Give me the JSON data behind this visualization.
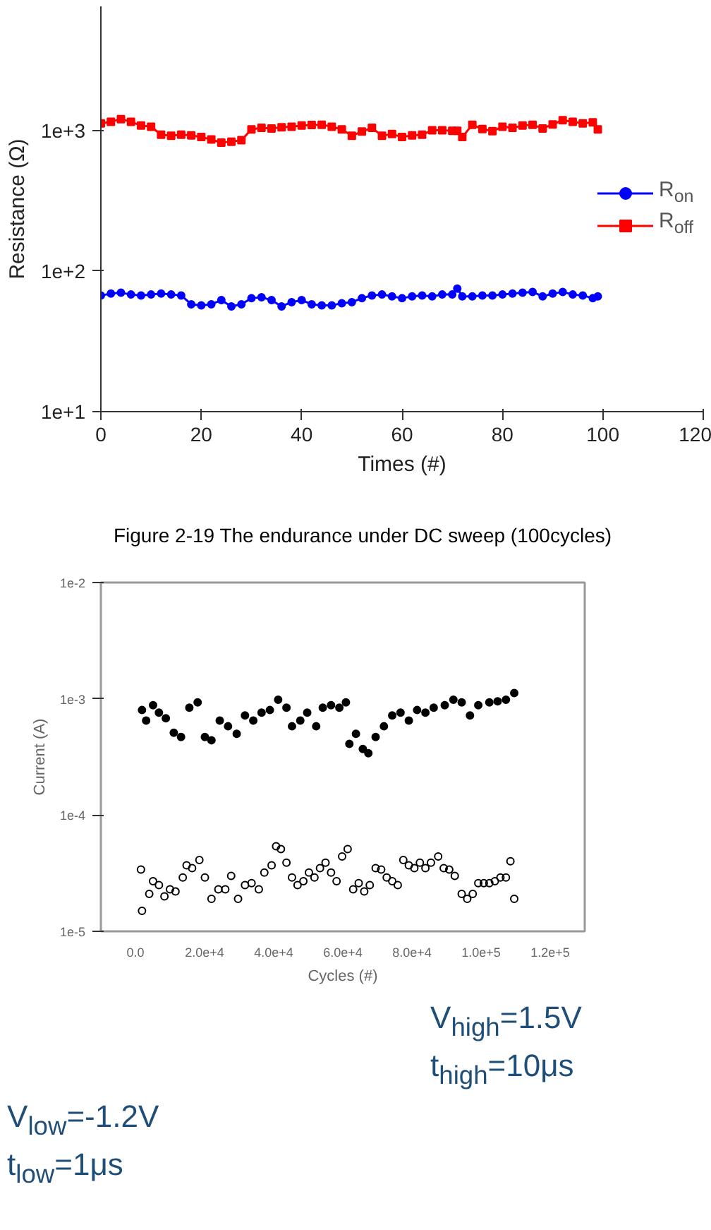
{
  "chart_data": [
    {
      "type": "line",
      "xlabel": "Times (#)",
      "ylabel": "Resistance (Ω)",
      "log": "y",
      "line_style": "solid",
      "legend": "right",
      "xlim": [
        0,
        120
      ],
      "xticks": [
        0,
        20,
        40,
        60,
        80,
        100,
        120
      ],
      "ylim": [
        10,
        7600
      ],
      "yticks": [
        {
          "value": 10,
          "label": "1e+1"
        },
        {
          "value": 100,
          "label": "1e+2"
        },
        {
          "value": 1000,
          "label": "1e+3"
        }
      ],
      "x": [
        0,
        2,
        4,
        6,
        8,
        10,
        12,
        14,
        16,
        18,
        20,
        22,
        24,
        26,
        28,
        30,
        32,
        34,
        36,
        38,
        40,
        42,
        44,
        46,
        48,
        50,
        52,
        54,
        56,
        58,
        60,
        62,
        64,
        66,
        68,
        70,
        71,
        72,
        74,
        76,
        78,
        80,
        82,
        84,
        86,
        88,
        90,
        92,
        94,
        96,
        98,
        99
      ],
      "series": [
        {
          "name": "R$_{on}$",
          "color": "#0000ff",
          "marker": "circle",
          "values": [
            67,
            69,
            70,
            68,
            67,
            68,
            69,
            68,
            67,
            58,
            57,
            58,
            62,
            56,
            58,
            64,
            65,
            62,
            56,
            60,
            62,
            58,
            57,
            57,
            59,
            60,
            64,
            67,
            68,
            66,
            64,
            66,
            67,
            66,
            68,
            68,
            75,
            66,
            66,
            67,
            67,
            68,
            69,
            70,
            71,
            66,
            69,
            71,
            68,
            67,
            64,
            66
          ]
        },
        {
          "name": "R$_{off}$",
          "color": "#ff0000",
          "marker": "square",
          "values": [
            1120,
            1150,
            1200,
            1150,
            1080,
            1060,
            930,
            915,
            930,
            920,
            895,
            860,
            816,
            830,
            850,
            1015,
            1040,
            1030,
            1050,
            1060,
            1080,
            1090,
            1095,
            1060,
            1015,
            915,
            980,
            1040,
            915,
            940,
            895,
            920,
            930,
            1000,
            1000,
            990,
            990,
            895,
            1095,
            1020,
            985,
            1060,
            1040,
            1080,
            1095,
            1030,
            1100,
            1180,
            1150,
            1120,
            1140,
            1015
          ]
        }
      ],
      "annotations": [
        "Figure 2-19 The endurance under DC sweep (100cycles)"
      ]
    },
    {
      "type": "scatter",
      "xlabel": "Cycles (#)",
      "ylabel": "Current (A)",
      "log": "y",
      "xlim": [
        -10000,
        130000
      ],
      "xticks": [
        {
          "value": 0,
          "label": "0.0"
        },
        {
          "value": 20000,
          "label": "2.0e+4"
        },
        {
          "value": 40000,
          "label": "4.0e+4"
        },
        {
          "value": 60000,
          "label": "6.0e+4"
        },
        {
          "value": 80000,
          "label": "8.0e+4"
        },
        {
          "value": 100000,
          "label": "1.0e+5"
        },
        {
          "value": 120000,
          "label": "1.2e+5"
        }
      ],
      "ylim": [
        1e-05,
        0.01
      ],
      "yticks": [
        {
          "value": 1e-05,
          "label": "1e-5"
        },
        {
          "value": 0.0001,
          "label": "1e-4"
        },
        {
          "value": 0.001,
          "label": "1e-3"
        },
        {
          "value": 0.01,
          "label": "1e-2"
        }
      ],
      "series": [
        {
          "color": "#000000",
          "marker": "circle",
          "x": [
            1900,
            3100,
            5100,
            6800,
            8800,
            11100,
            13200,
            15600,
            18000,
            20100,
            22000,
            24400,
            26800,
            29300,
            31700,
            34100,
            36500,
            38900,
            41300,
            43700,
            45300,
            47700,
            49700,
            52300,
            54200,
            56600,
            59000,
            60900,
            61900,
            63800,
            65800,
            67400,
            69500,
            71900,
            74300,
            76700,
            79100,
            81500,
            83900,
            86300,
            89500,
            92000,
            94400,
            96800,
            99200,
            102400,
            104800,
            107200,
            109600
          ],
          "values": [
            0.0008,
            0.00065,
            0.00088,
            0.00076,
            0.00068,
            0.00051,
            0.00047,
            0.00084,
            0.00093,
            0.00047,
            0.00044,
            0.00065,
            0.00058,
            0.0005,
            0.00072,
            0.00065,
            0.00076,
            0.0008,
            0.00098,
            0.00084,
            0.00058,
            0.00065,
            0.00076,
            0.00058,
            0.00084,
            0.00088,
            0.00084,
            0.00093,
            0.00041,
            0.0005,
            0.00037,
            0.00034,
            0.00047,
            0.00058,
            0.00072,
            0.00076,
            0.00065,
            0.0008,
            0.00076,
            0.00084,
            0.00088,
            0.00098,
            0.00093,
            0.00072,
            0.00088,
            0.00093,
            0.00095,
            0.00098,
            0.00112
          ]
        },
        {
          "color": "#000000",
          "marker": "circle_open",
          "x": [
            1600,
            1900,
            4000,
            5100,
            6800,
            8400,
            10000,
            11600,
            13700,
            14800,
            16400,
            18500,
            20100,
            22000,
            24000,
            26000,
            27700,
            29700,
            31700,
            33600,
            35700,
            37300,
            39400,
            40700,
            42100,
            43700,
            45300,
            46900,
            48600,
            50200,
            51800,
            53400,
            55000,
            56600,
            58200,
            59800,
            61400,
            63000,
            64600,
            66200,
            67800,
            69500,
            71100,
            72700,
            74300,
            75900,
            77500,
            79100,
            80700,
            82300,
            83900,
            85500,
            87600,
            89200,
            90800,
            92400,
            94400,
            96000,
            97600,
            99200,
            100800,
            102400,
            104000,
            105600,
            107200,
            108500,
            109600
          ],
          "values": [
            3.4e-05,
            1.5e-05,
            2.1e-05,
            2.7e-05,
            2.5e-05,
            2e-05,
            2.3e-05,
            2.2e-05,
            2.9e-05,
            3.7e-05,
            3.5e-05,
            4.1e-05,
            2.9e-05,
            1.9e-05,
            2.3e-05,
            2.3e-05,
            3e-05,
            1.9e-05,
            2.5e-05,
            2.6e-05,
            2.3e-05,
            3.2e-05,
            3.7e-05,
            5.4e-05,
            5.1e-05,
            3.9e-05,
            2.9e-05,
            2.5e-05,
            2.7e-05,
            3.2e-05,
            2.9e-05,
            3.5e-05,
            3.9e-05,
            3.2e-05,
            2.7e-05,
            4.4e-05,
            5.1e-05,
            2.3e-05,
            2.6e-05,
            2.2e-05,
            2.5e-05,
            3.5e-05,
            3.4e-05,
            2.9e-05,
            2.7e-05,
            2.5e-05,
            4.1e-05,
            3.7e-05,
            3.5e-05,
            3.9e-05,
            3.5e-05,
            3.9e-05,
            4.4e-05,
            3.5e-05,
            3.4e-05,
            3e-05,
            2.1e-05,
            1.9e-05,
            2.1e-05,
            2.6e-05,
            2.6e-05,
            2.6e-05,
            2.7e-05,
            2.9e-05,
            2.9e-05,
            4e-05,
            1.9e-05
          ]
        }
      ],
      "annotations": [
        "V$_{high}$=1.5V",
        "t$_{high}$=10μs",
        "V$_{low}$=-1.2V",
        "t$_{low}$=1μs"
      ]
    }
  ]
}
